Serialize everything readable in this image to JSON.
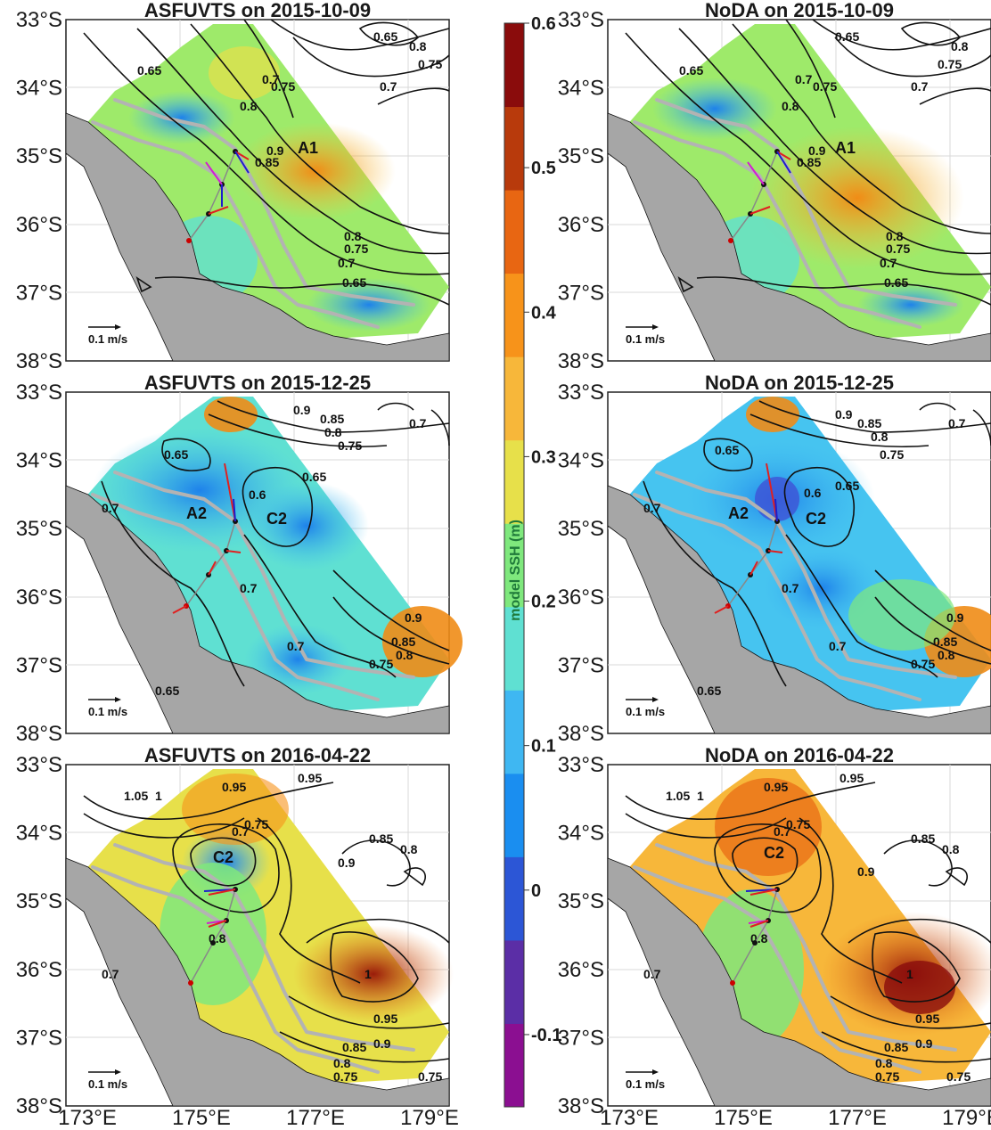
{
  "chart_data": [
    {
      "type": "heatmap",
      "title": "ASFUVTS on 2015-10-09",
      "contour_levels": [
        "0.65",
        "0.7",
        "0.75",
        "0.8",
        "0.85",
        "0.9"
      ],
      "features": [
        "A1"
      ],
      "scale_label": "0.1 m/s"
    },
    {
      "type": "heatmap",
      "title": "NoDA on 2015-10-09",
      "contour_levels": [
        "0.65",
        "0.7",
        "0.75",
        "0.8",
        "0.85",
        "0.9"
      ],
      "features": [
        "A1"
      ],
      "scale_label": "0.1 m/s"
    },
    {
      "type": "heatmap",
      "title": "ASFUVTS on 2015-12-25",
      "contour_levels": [
        "0.6",
        "0.65",
        "0.7",
        "0.75",
        "0.8",
        "0.85",
        "0.9"
      ],
      "features": [
        "A2",
        "C2"
      ],
      "scale_label": "0.1 m/s"
    },
    {
      "type": "heatmap",
      "title": "NoDA on 2015-12-25",
      "contour_levels": [
        "0.6",
        "0.65",
        "0.7",
        "0.75",
        "0.8",
        "0.85",
        "0.9"
      ],
      "features": [
        "A2",
        "C2"
      ],
      "scale_label": "0.1 m/s"
    },
    {
      "type": "heatmap",
      "title": "ASFUVTS on 2016-04-22",
      "contour_levels": [
        "0.7",
        "0.75",
        "0.8",
        "0.85",
        "0.9",
        "0.95",
        "1",
        "1.05"
      ],
      "features": [
        "C2"
      ],
      "scale_label": "0.1 m/s"
    },
    {
      "type": "heatmap",
      "title": "NoDA on 2016-04-22",
      "contour_levels": [
        "0.7",
        "0.75",
        "0.8",
        "0.85",
        "0.9",
        "0.95",
        "1",
        "1.05"
      ],
      "features": [
        "C2"
      ],
      "scale_label": "0.1 m/s"
    }
  ],
  "axes": {
    "y_ticks": [
      "33°S",
      "34°S",
      "35°S",
      "36°S",
      "37°S",
      "38°S"
    ],
    "x_ticks": [
      "173°E",
      "175°E",
      "177°E",
      "179°E"
    ],
    "lon_range": [
      173,
      179.7
    ],
    "lat_range": [
      -38,
      -33
    ]
  },
  "colorbar": {
    "label": "model SSH (m)",
    "ticks": [
      "0.6",
      "0.5",
      "0.4",
      "0.3",
      "0.2",
      "0.1",
      "0",
      "-0.1"
    ],
    "range": [
      -0.15,
      0.6
    ],
    "colors": [
      "#8b0f91",
      "#5b2ea6",
      "#2c56d6",
      "#1a8ef0",
      "#3fb7f2",
      "#5fe0d2",
      "#7fe87d",
      "#e7e04a",
      "#f7b73a",
      "#f7931a",
      "#e86612",
      "#b83a0c",
      "#8a0c0c"
    ]
  },
  "colors": {
    "land": "#a6a6a6",
    "contour": "#111111",
    "isobath": "#b3b3b3",
    "arrow_red": "#e02020",
    "arrow_blue": "#1d1dcc",
    "arrow_magenta": "#d21fd2"
  }
}
